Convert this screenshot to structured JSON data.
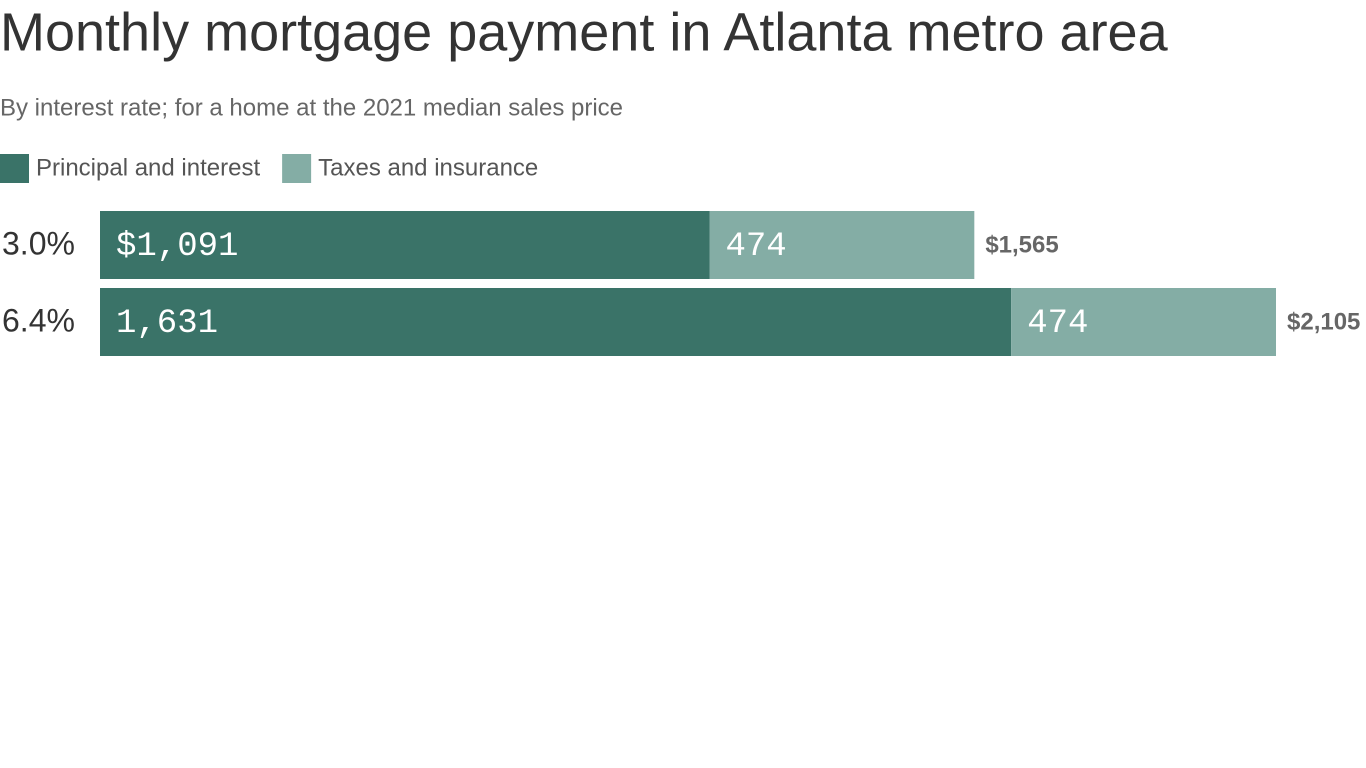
{
  "chart_data": {
    "type": "stacked-bar-horizontal",
    "title": "Monthly mortgage payment in Atlanta metro area",
    "subtitle": "By interest rate; for a home at the 2021 median sales price",
    "categories": [
      "3.0%",
      "6.4%"
    ],
    "series": [
      {
        "name": "Principal and interest",
        "color": "#3a7368",
        "values": [
          1091,
          1631
        ],
        "value_labels": [
          "$1,091",
          "1,631"
        ]
      },
      {
        "name": "Taxes and insurance",
        "color": "#84ada5",
        "values": [
          474,
          474
        ],
        "value_labels": [
          "474",
          "474"
        ]
      }
    ],
    "totals": [
      1565,
      2105
    ],
    "total_labels": [
      "$1,565",
      "$2,105"
    ]
  }
}
